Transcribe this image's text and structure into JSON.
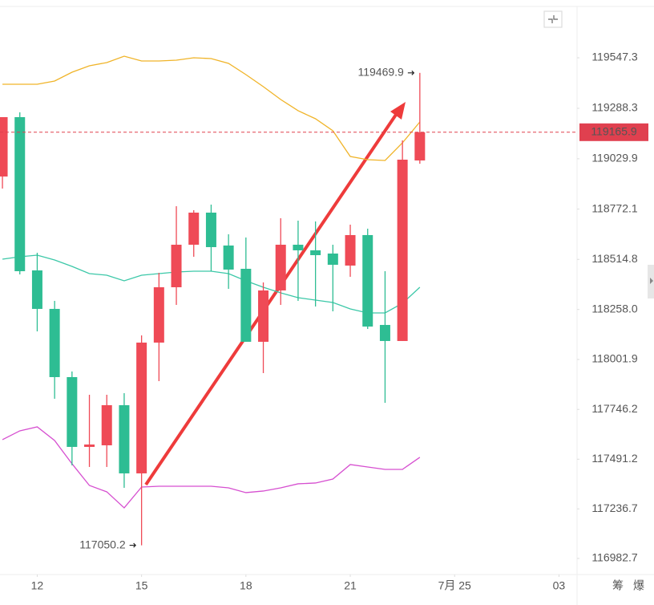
{
  "chart_data": {
    "type": "candlestick",
    "up_color": "#ef4a56",
    "down_color": "#2ebd93",
    "open": [
      118939.1,
      119243.2,
      118458.2,
      118261.0,
      117911.6,
      117554.1,
      117562.3,
      117767.8,
      117418.5,
      118088.4,
      118371.9,
      118589.7,
      118754.1,
      118585.6,
      118466.4,
      118092.5,
      118355.5,
      118589.7,
      118561.0,
      118544.5,
      118482.9,
      118639.1,
      118178.8,
      118096.6,
      119021.3
    ],
    "high": [
      119243.2,
      119267.8,
      118548.6,
      118302.1,
      117940.4,
      117821.2,
      117821.2,
      117829.4,
      118125.3,
      118445.9,
      118787.0,
      118766.5,
      118795.2,
      118643.2,
      118626.7,
      118396.6,
      118725.4,
      118713.0,
      118708.9,
      118589.7,
      118692.5,
      118671.9,
      118454.1,
      119124.0,
      119469.9
    ],
    "low": [
      118877.4,
      118437.7,
      118145.9,
      117800.7,
      117459.6,
      117451.4,
      117451.4,
      117344.5,
      117050.2,
      117891.1,
      118281.5,
      118528.1,
      118454.1,
      118363.7,
      118092.5,
      117932.2,
      118281.5,
      118302.1,
      118273.3,
      118248.6,
      118425.4,
      118158.2,
      117780.1,
      118096.6,
      119004.8
    ],
    "close": [
      119243.2,
      118454.1,
      118261.0,
      117911.6,
      117554.1,
      117566.4,
      117767.8,
      117418.5,
      118088.4,
      118371.9,
      118589.7,
      118754.1,
      118577.4,
      118462.3,
      118092.5,
      118355.5,
      118589.7,
      118561.0,
      118536.3,
      118487.0,
      118639.1,
      118170.6,
      118096.6,
      119025.4,
      119165.9
    ],
    "lines": [
      {
        "color": "#f0b429",
        "values": [
          119411.7,
          119411.7,
          119411.7,
          119428.1,
          119473.3,
          119506.2,
          119522.6,
          119555.5,
          119530.9,
          119530.9,
          119535.0,
          119547.3,
          119543.2,
          119518.5,
          119461.0,
          119399.4,
          119333.6,
          119276.1,
          119235.0,
          119173.3,
          119041.8,
          119025.4,
          119021.3,
          119111.7,
          119218.5
        ]
      },
      {
        "color": "#3cc8a8",
        "values": [
          118515.8,
          118528.1,
          118536.3,
          118511.7,
          118478.8,
          118441.8,
          118433.6,
          118404.8,
          118433.6,
          118441.8,
          118450.0,
          118454.1,
          118454.1,
          118441.8,
          118404.8,
          118371.9,
          118343.2,
          118318.5,
          118306.2,
          118293.8,
          118261.0,
          118240.4,
          118240.4,
          118289.7,
          118371.9
        ]
      },
      {
        "color": "#d64fd0",
        "values": [
          117591.1,
          117636.3,
          117656.8,
          117587.0,
          117467.8,
          117356.8,
          117324.0,
          117241.8,
          117348.6,
          117352.7,
          117352.7,
          117352.7,
          117352.7,
          117344.5,
          117319.9,
          117328.1,
          117344.5,
          117365.1,
          117369.2,
          117389.7,
          117463.7,
          117451.4,
          117439.0,
          117439.0,
          117500.7
        ]
      }
    ],
    "ylim": [
      116900.5,
      119810.3
    ],
    "yticks": [
      119547.3,
      119288.3,
      119029.9,
      118772.1,
      118514.8,
      {
        "value": 118258.0,
        "label": "118258.0"
      },
      118001.9,
      117746.2,
      117491.2,
      117236.7,
      116982.7
    ],
    "xlim": [
      -0.14,
      33.04
    ],
    "xticks": [
      {
        "value": 2,
        "label": "12"
      },
      {
        "value": 8,
        "label": "15"
      },
      {
        "value": 14,
        "label": "18"
      },
      {
        "value": 20,
        "label": "21"
      },
      {
        "value": 26,
        "label": "7月 25"
      },
      {
        "value": 32,
        "label": "03"
      }
    ],
    "grid": false,
    "price_line_color": "#e0404f",
    "footer_buttons": [
      "筹",
      "爆"
    ]
  }
}
